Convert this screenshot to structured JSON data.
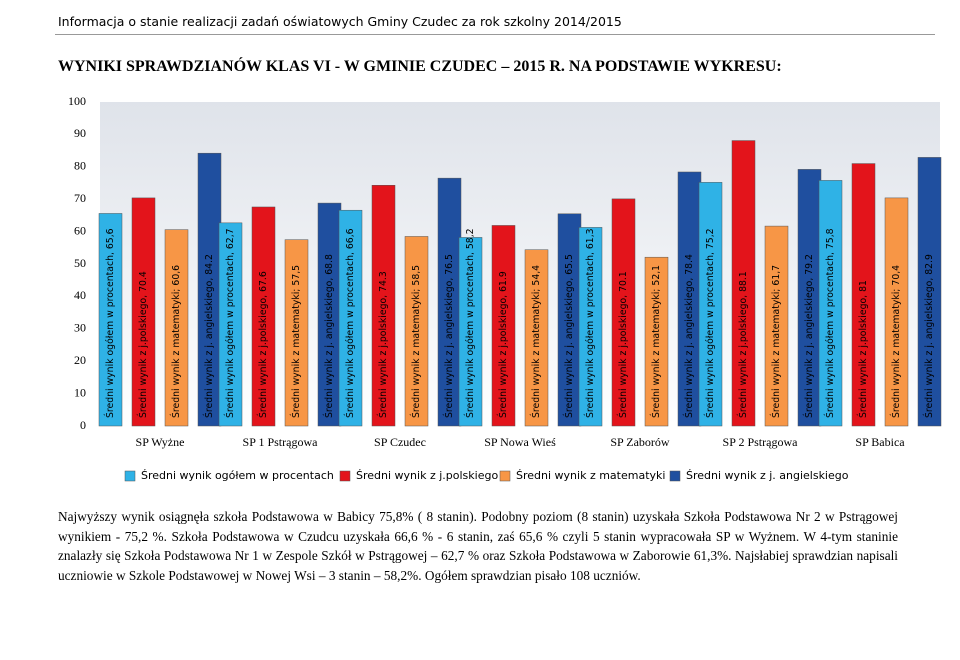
{
  "header": "Informacja o stanie realizacji zadań oświatowych Gminy Czudec za rok szkolny 2014/2015",
  "heading": "WYNIKI SPRAWDZIANÓW KLAS VI - W GMINIE CZUDEC – 2015 R. NA PODSTAWIE WYKRESU:",
  "chart_data": {
    "type": "bar",
    "categories": [
      "SP Wyżne",
      "SP 1 Pstrągowa",
      "SP Czudec",
      "SP Nowa Wieś",
      "SP Zaborów",
      "SP 2 Pstrągowa",
      "SP Babica"
    ],
    "series": [
      {
        "name": "Średni wynik ogółem w procentach",
        "color": "#2fb2e6",
        "values": [
          65.6,
          62.7,
          66.6,
          58.2,
          61.3,
          75.2,
          75.8
        ],
        "value_labels": [
          "Średni wynik ogółem w procentach, 65,6",
          "Średni wynik ogółem w procentach, 62,7",
          "Średni wynik ogółem w procentach, 66,6",
          "Średni wynik ogółem w procentach, 58,2",
          "Średni wynik ogółem w procentach, 61,3",
          "Średni wynik ogółem w procentach, 75,2",
          "Średni wynik ogółem w procentach, 75,8"
        ]
      },
      {
        "name": "Średni wynik z j.polskiego",
        "color": "#e3141b",
        "values": [
          70.4,
          67.6,
          74.3,
          61.9,
          70.1,
          88.1,
          81
        ],
        "value_labels": [
          "Średni wynik z j.polskiego, 70.4",
          "Średni wynik z j.polskiego, 67.6",
          "Średni wynik z j.polskiego, 74.3",
          "Średni wynik z j.polskiego, 61.9",
          "Średni wynik z j.polskiego, 70.1",
          "Średni wynik z j.polskiego, 88.1",
          "Średni wynik z j.polskiego, 81"
        ]
      },
      {
        "name": "Średni wynik z matematyki",
        "color": "#f79646",
        "values": [
          60.6,
          57.5,
          58.5,
          54.4,
          52.1,
          61.7,
          70.4
        ],
        "value_labels": [
          "Średni wynik z matematyki; 60,6",
          "Średni wynik z matematyki; 57,5",
          "Średni wynik z matematyki; 58,5",
          "Średni wynik z matematyki; 54,4",
          "Średni wynik z matematyki; 52,1",
          "Średni wynik z matematyki; 61,7",
          "Średni wynik z matematyki; 70,4"
        ]
      },
      {
        "name": "Średni wynik z j. angielskiego",
        "color": "#1f4f9f",
        "values": [
          84.2,
          68.8,
          76.5,
          65.5,
          78.4,
          79.2,
          82.9
        ],
        "value_labels": [
          "Średni wynik z j. angielskiego, 84.2",
          "Średni wynik z j. angielskiego, 68.8",
          "Średni wynik z j. angielskiego, 76.5",
          "Średni wynik z j. angielskiego, 65.5",
          "Średni wynik z j. angielskiego, 78.4",
          "Średni wynik z j. angielskiego, 79.2",
          "Średni wynik z j. angielskiego, 82.9"
        ]
      }
    ],
    "ylim": [
      0,
      100
    ],
    "yticks": [
      0,
      10,
      20,
      30,
      40,
      50,
      60,
      70,
      80,
      90,
      100
    ],
    "grid": false,
    "legend": "bottom"
  },
  "paragraph": "Najwyższy wynik osiągnęła szkoła Podstawowa w Babicy 75,8% ( 8 stanin). Podobny poziom (8 stanin) uzyskała Szkoła Podstawowa Nr 2 w Pstrągowej wynikiem - 75,2 %. Szkoła Podstawowa w Czudcu uzyskała 66,6 % - 6 stanin, zaś 65,6 % czyli 5 stanin wypracowała SP w Wyżnem. W 4-tym staninie znalazły się Szkoła Podstawowa Nr 1 w Zespole Szkół w Pstrągowej – 62,7 % oraz Szkoła Podstawowa w Zaborowie 61,3%. Najsłabiej sprawdzian napisali uczniowie w Szkole Podstawowej w Nowej Wsi – 3 stanin – 58,2%. Ogółem sprawdzian pisało 108 uczniów."
}
